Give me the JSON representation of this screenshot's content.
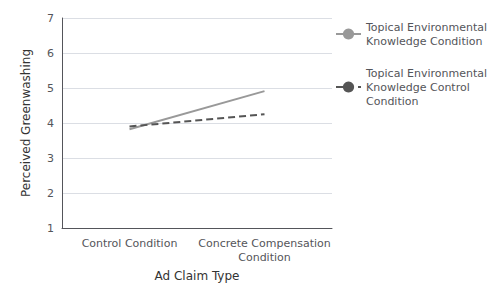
{
  "chart_data": {
    "type": "line",
    "xlabel": "Ad Claim Type",
    "ylabel": "Perceived Greenwashing",
    "categories": [
      "Control Condition",
      "Concrete Compensation\nCondition"
    ],
    "series": [
      {
        "name": "Topical Environmental\nKnowledge Condition",
        "color": "#999999",
        "line_style": "solid",
        "values": [
          3.82,
          4.91
        ]
      },
      {
        "name": "Topical Environmental\nKnowledge Control\nCondition",
        "color": "#555555",
        "line_style": "dashed",
        "values": [
          3.9,
          4.25
        ]
      }
    ],
    "ylim": [
      1,
      7
    ],
    "yticks": [
      1,
      2,
      3,
      4,
      5,
      6,
      7
    ],
    "grid": true,
    "legend": "right"
  }
}
